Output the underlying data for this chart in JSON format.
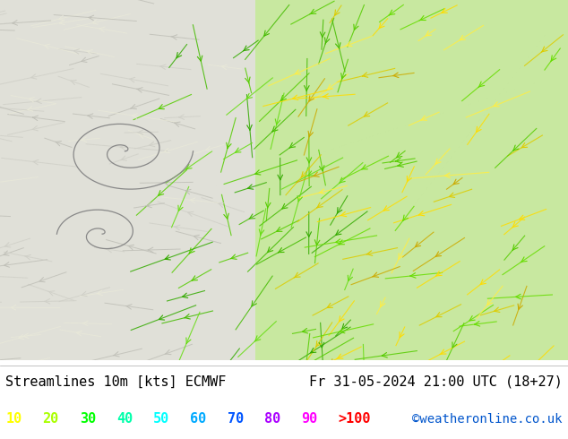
{
  "title_left": "Streamlines 10m [kts] ECMWF",
  "title_right": "Fr 31-05-2024 21:00 UTC (18+27)",
  "credit": "©weatheronline.co.uk",
  "legend_values": [
    "10",
    "20",
    "30",
    "40",
    "50",
    "60",
    "70",
    "80",
    "90",
    ">100"
  ],
  "legend_colors": [
    "#ffff00",
    "#aaff00",
    "#00ff00",
    "#00ffaa",
    "#00ffff",
    "#00aaff",
    "#0055ff",
    "#aa00ff",
    "#ff00ff",
    "#ff0000"
  ],
  "bg_color": "#ffffff",
  "map_bg_light": "#d8f0c0",
  "map_bg_gray": "#e8e8e8",
  "title_fontsize": 11,
  "credit_fontsize": 10,
  "legend_fontsize": 11,
  "fig_width": 6.34,
  "fig_height": 4.9
}
